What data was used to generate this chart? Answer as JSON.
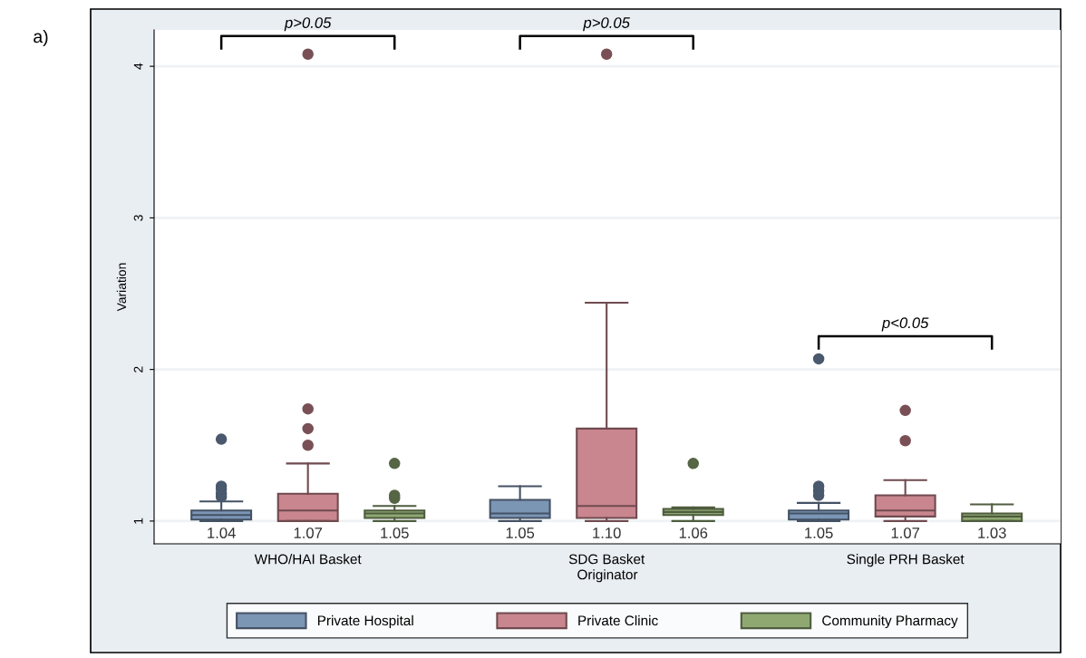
{
  "chart_data": {
    "type": "box",
    "ylabel": "Variation",
    "xlabel": "Originator",
    "categories": [
      "WHO/HAI Basket",
      "SDG Basket",
      "Single PRH Basket"
    ],
    "ylim": [
      0.85,
      4.24
    ],
    "yticks": [
      1,
      2,
      3,
      4
    ],
    "grid": "y",
    "legend": "bottom",
    "series": [
      {
        "name": "Private Hospital",
        "color": "#7b95b5",
        "value_labels": [
          "1.04",
          "1.05",
          "1.05"
        ],
        "boxes": [
          {
            "low": 1.0,
            "q1": 1.01,
            "median": 1.04,
            "q3": 1.07,
            "high": 1.13,
            "outliers": [
              1.16,
              1.18,
              1.21,
              1.23,
              1.54
            ]
          },
          {
            "low": 1.0,
            "q1": 1.02,
            "median": 1.05,
            "q3": 1.14,
            "high": 1.23
          },
          {
            "low": 1.0,
            "q1": 1.01,
            "median": 1.05,
            "q3": 1.07,
            "high": 1.12,
            "outliers": [
              1.17,
              1.2,
              1.23,
              2.07
            ]
          }
        ]
      },
      {
        "name": "Private Clinic",
        "color": "#c9868f",
        "value_labels": [
          "1.07",
          "1.10",
          "1.07"
        ],
        "boxes": [
          {
            "low": 1.0,
            "q1": 1.0,
            "median": 1.07,
            "q3": 1.18,
            "high": 1.38,
            "outliers": [
              1.5,
              1.61,
              1.74,
              4.08
            ]
          },
          {
            "low": 1.0,
            "q1": 1.02,
            "median": 1.1,
            "q3": 1.61,
            "high": 2.44,
            "outliers": [
              4.08
            ]
          },
          {
            "low": 1.0,
            "q1": 1.03,
            "median": 1.07,
            "q3": 1.17,
            "high": 1.27,
            "outliers": [
              1.53,
              1.73
            ]
          }
        ]
      },
      {
        "name": "Community Pharmacy",
        "color": "#8fa872",
        "value_labels": [
          "1.05",
          "1.06",
          "1.03"
        ],
        "boxes": [
          {
            "low": 1.0,
            "q1": 1.02,
            "median": 1.05,
            "q3": 1.07,
            "high": 1.1,
            "outliers": [
              1.15,
              1.17,
              1.38
            ]
          },
          {
            "low": 1.0,
            "q1": 1.04,
            "median": 1.06,
            "q3": 1.08,
            "high": 1.09,
            "outliers": [
              1.38
            ]
          },
          {
            "low": 1.0,
            "q1": 1.0,
            "median": 1.03,
            "q3": 1.05,
            "high": 1.11
          }
        ]
      }
    ],
    "annotations": [
      "a)",
      "p>0.05",
      "p>0.05",
      "p<0.05"
    ]
  }
}
